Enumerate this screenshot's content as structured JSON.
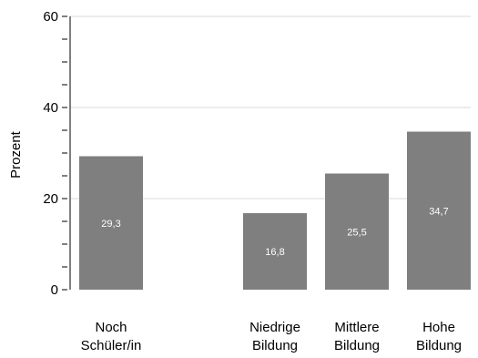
{
  "chart_data": {
    "type": "bar",
    "categories": [
      [
        "Noch",
        "Schüler/in"
      ],
      [
        "",
        ""
      ],
      [
        "Niedrige",
        "Bildung"
      ],
      [
        "Mittlere",
        "Bildung"
      ],
      [
        "Hohe",
        "Bildung"
      ]
    ],
    "values": [
      29.3,
      null,
      16.8,
      25.5,
      34.7
    ],
    "value_labels": [
      "29,3",
      "",
      "16,8",
      "25,5",
      "34,7"
    ],
    "ylabel": "Prozent",
    "ylim": [
      0,
      60
    ],
    "major_ticks": [
      0,
      20,
      40,
      60
    ],
    "minor_tick_step": 5,
    "grid": true,
    "colors": {
      "bar": "#7f7f7f",
      "grid": "#d9d9d9",
      "axis": "#000000"
    }
  }
}
